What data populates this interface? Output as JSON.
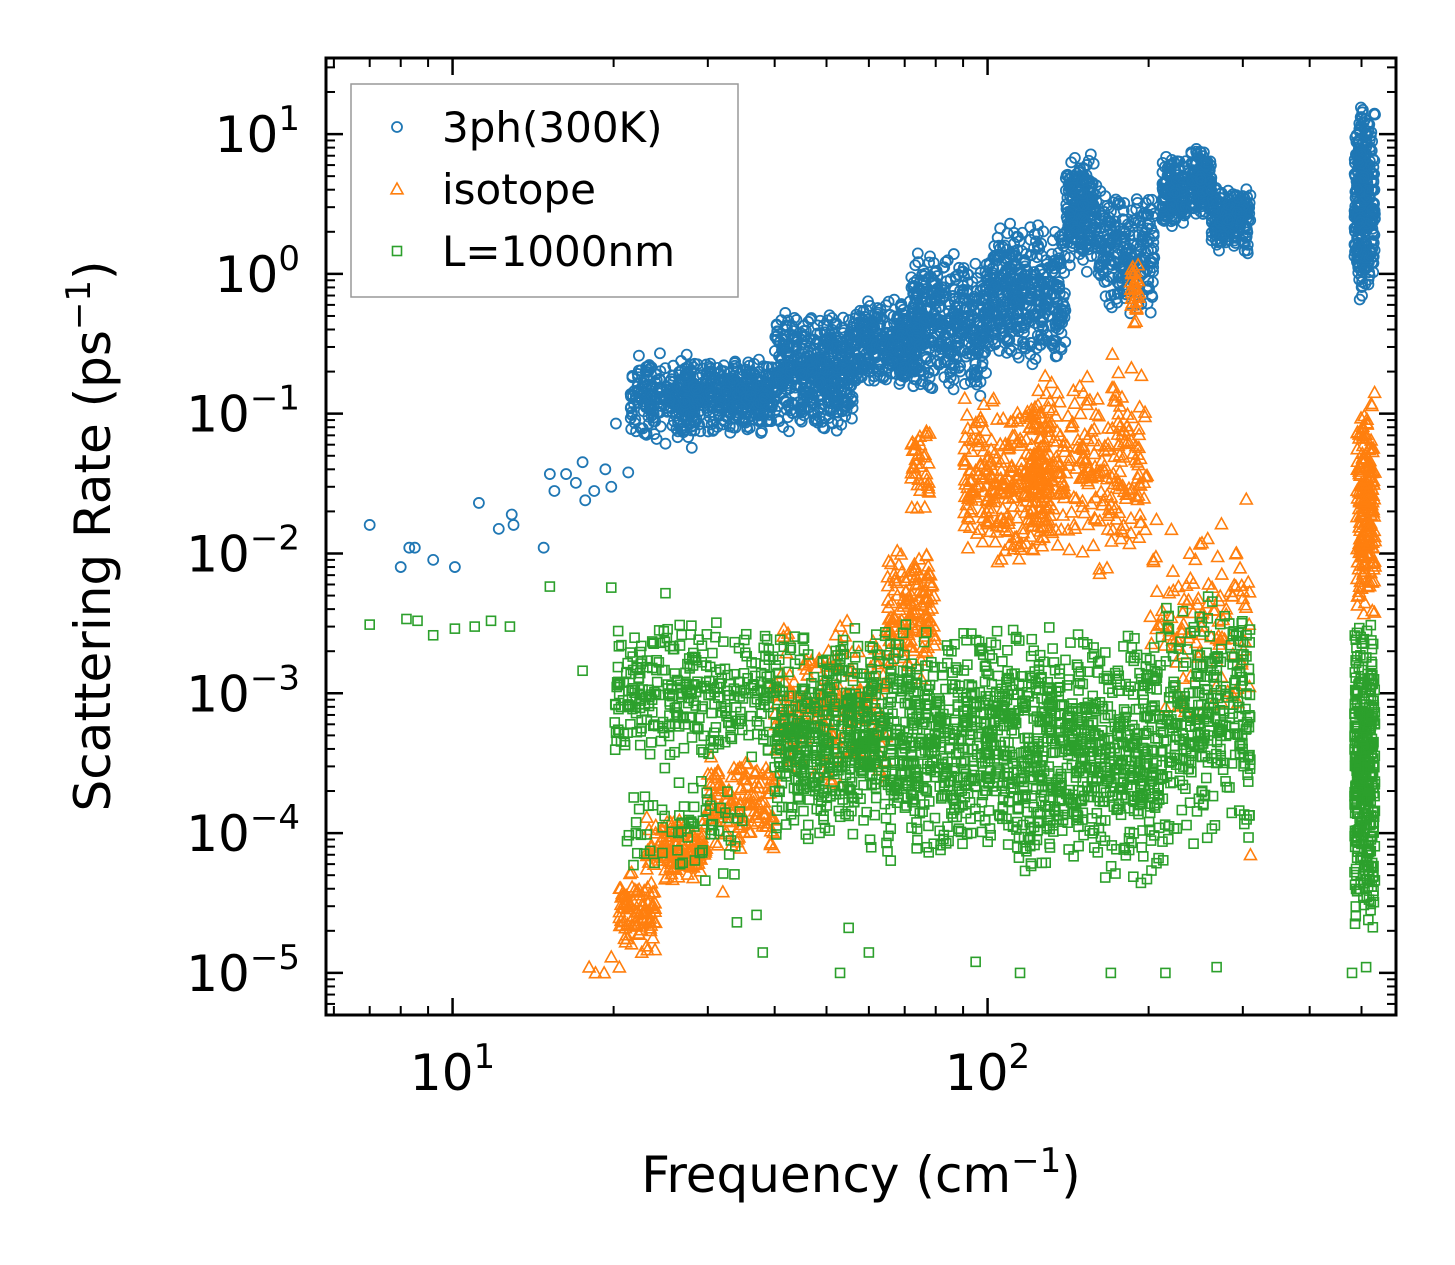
{
  "chart_data": {
    "type": "scatter",
    "title": "",
    "xlabel": "Frequency",
    "xlabel_unit": "cm",
    "xlabel_unit_exp": "−1",
    "ylabel": "Scattering Rate",
    "ylabel_unit": "ps",
    "ylabel_unit_exp": "−1",
    "xscale": "log",
    "yscale": "log",
    "xlim": [
      5.8,
      580
    ],
    "ylim": [
      5e-06,
      35
    ],
    "legend_position": "top-left",
    "x_ticks": [
      {
        "value": 10,
        "base": "10",
        "exp": "1"
      },
      {
        "value": 100,
        "base": "10",
        "exp": "2"
      }
    ],
    "y_ticks": [
      {
        "value": 10,
        "base": "10",
        "exp": "1"
      },
      {
        "value": 1,
        "base": "10",
        "exp": "0"
      },
      {
        "value": 0.1,
        "base": "10",
        "exp": "−1"
      },
      {
        "value": 0.01,
        "base": "10",
        "exp": "−2"
      },
      {
        "value": 0.001,
        "base": "10",
        "exp": "−3"
      },
      {
        "value": 0.0001,
        "base": "10",
        "exp": "−4"
      },
      {
        "value": 1e-05,
        "base": "10",
        "exp": "−5"
      }
    ],
    "series": [
      {
        "name": "3ph(300K)",
        "marker": "circle",
        "color": "#1f77b4",
        "points": [
          [
            7.0,
            0.016
          ],
          [
            8.0,
            0.008
          ],
          [
            8.3,
            0.011
          ],
          [
            8.5,
            0.011
          ],
          [
            9.2,
            0.009
          ],
          [
            10.1,
            0.008
          ],
          [
            11.2,
            0.023
          ],
          [
            12.2,
            0.015
          ],
          [
            12.9,
            0.019
          ],
          [
            13.0,
            0.016
          ],
          [
            14.8,
            0.011
          ],
          [
            15.2,
            0.037
          ],
          [
            15.5,
            0.028
          ],
          [
            16.3,
            0.037
          ],
          [
            17.0,
            0.032
          ],
          [
            17.5,
            0.045
          ],
          [
            17.7,
            0.024
          ],
          [
            18.4,
            0.028
          ],
          [
            19.3,
            0.04
          ],
          [
            19.8,
            0.03
          ],
          [
            20.2,
            0.085
          ],
          [
            21.3,
            0.038
          ],
          [
            22.3,
            0.26
          ],
          [
            25.0,
            0.061
          ],
          [
            28.0,
            0.057
          ]
        ],
        "clusters": [
          {
            "x": [
              21.5,
              28
            ],
            "y": [
              0.06,
              0.28
            ],
            "n": 220
          },
          {
            "x": [
              27,
              40
            ],
            "y": [
              0.07,
              0.26
            ],
            "n": 420
          },
          {
            "x": [
              40,
              56
            ],
            "y": [
              0.07,
              0.55
            ],
            "n": 480
          },
          {
            "x": [
              56,
              75
            ],
            "y": [
              0.15,
              0.7
            ],
            "n": 340
          },
          {
            "x": [
              72,
              100
            ],
            "y": [
              0.12,
              1.6
            ],
            "n": 420
          },
          {
            "x": [
              100,
              140
            ],
            "y": [
              0.22,
              2.4
            ],
            "n": 420
          },
          {
            "x": [
              140,
              160
            ],
            "y": [
              1.0,
              7.5
            ],
            "n": 220
          },
          {
            "x": [
              160,
              205
            ],
            "y": [
              0.5,
              4.0
            ],
            "n": 240
          },
          {
            "x": [
              212,
              235
            ],
            "y": [
              2.0,
              7.5
            ],
            "n": 160
          },
          {
            "x": [
              240,
              262
            ],
            "y": [
              2.5,
              8.2
            ],
            "n": 160
          },
          {
            "x": [
              262,
              310
            ],
            "y": [
              1.3,
              4.5
            ],
            "n": 200
          },
          {
            "x": [
              485,
              530
            ],
            "y": [
              0.55,
              19
            ],
            "n": 320
          }
        ]
      },
      {
        "name": "isotope",
        "marker": "triangle",
        "color": "#ff7f0e",
        "points": [
          [
            18.0,
            1.1e-05
          ],
          [
            18.5,
            1e-05
          ],
          [
            19.2,
            1e-05
          ],
          [
            19.8,
            1.3e-05
          ],
          [
            20.5,
            1.1e-05
          ],
          [
            32.0,
            3.8e-05
          ],
          [
            310,
            7e-05
          ]
        ],
        "clusters": [
          {
            "x": [
              20.5,
              24
            ],
            "y": [
              1.2e-05,
              6e-05
            ],
            "n": 90
          },
          {
            "x": [
              23,
              30
            ],
            "y": [
              4.5e-05,
              0.00014
            ],
            "n": 140
          },
          {
            "x": [
              30,
              40
            ],
            "y": [
              7e-05,
              0.0004
            ],
            "n": 140
          },
          {
            "x": [
              40,
              65
            ],
            "y": [
              0.0002,
              0.0035
            ],
            "n": 200
          },
          {
            "x": [
              65,
              80
            ],
            "y": [
              0.0012,
              0.012
            ],
            "n": 140
          },
          {
            "x": [
              72,
              78
            ],
            "y": [
              0.02,
              0.09
            ],
            "n": 40
          },
          {
            "x": [
              90,
              130
            ],
            "y": [
              0.008,
              0.15
            ],
            "n": 280
          },
          {
            "x": [
              120,
              160
            ],
            "y": [
              0.008,
              0.2
            ],
            "n": 180
          },
          {
            "x": [
              160,
              200
            ],
            "y": [
              0.005,
              0.35
            ],
            "n": 120
          },
          {
            "x": [
              185,
              192
            ],
            "y": [
              0.4,
              1.5
            ],
            "n": 30
          },
          {
            "x": [
              200,
              310
            ],
            "y": [
              0.0005,
              0.025
            ],
            "n": 120
          },
          {
            "x": [
              490,
              530
            ],
            "y": [
              0.003,
              0.15
            ],
            "n": 200
          }
        ]
      },
      {
        "name": "L=1000nm",
        "marker": "square",
        "color": "#2ca02c",
        "points": [
          [
            7.0,
            0.0031
          ],
          [
            8.2,
            0.0034
          ],
          [
            8.6,
            0.0033
          ],
          [
            9.2,
            0.0026
          ],
          [
            10.1,
            0.0029
          ],
          [
            11.0,
            0.003
          ],
          [
            11.8,
            0.0033
          ],
          [
            12.8,
            0.003
          ],
          [
            15.2,
            0.0058
          ],
          [
            17.5,
            0.00145
          ],
          [
            19.8,
            0.0057
          ],
          [
            25.0,
            0.0052
          ],
          [
            34.0,
            2.3e-05
          ],
          [
            37.0,
            2.6e-05
          ],
          [
            38.0,
            1.4e-05
          ],
          [
            55.0,
            2.1e-05
          ],
          [
            60.0,
            1.4e-05
          ],
          [
            53.0,
            1e-05
          ],
          [
            95.0,
            1.2e-05
          ],
          [
            115.0,
            1e-05
          ],
          [
            170.0,
            1e-05
          ],
          [
            215.0,
            1e-05
          ],
          [
            268.0,
            1.1e-05
          ],
          [
            480.0,
            1e-05
          ],
          [
            510.0,
            1.1e-05
          ]
        ],
        "clusters": [
          {
            "x": [
              20,
              40
            ],
            "y": [
              0.0003,
              0.0035
            ],
            "n": 320
          },
          {
            "x": [
              21,
              35
            ],
            "y": [
              4e-05,
              0.0003
            ],
            "n": 70
          },
          {
            "x": [
              40,
              60
            ],
            "y": [
              8e-05,
              0.003
            ],
            "n": 420
          },
          {
            "x": [
              60,
              100
            ],
            "y": [
              6e-05,
              0.0035
            ],
            "n": 520
          },
          {
            "x": [
              100,
              160
            ],
            "y": [
              5e-05,
              0.0035
            ],
            "n": 520
          },
          {
            "x": [
              160,
              215
            ],
            "y": [
              4e-05,
              0.0035
            ],
            "n": 300
          },
          {
            "x": [
              215,
              310
            ],
            "y": [
              8e-05,
              0.006
            ],
            "n": 300
          },
          {
            "x": [
              485,
              530
            ],
            "y": [
              2e-05,
              0.0035
            ],
            "n": 380
          }
        ]
      }
    ]
  }
}
